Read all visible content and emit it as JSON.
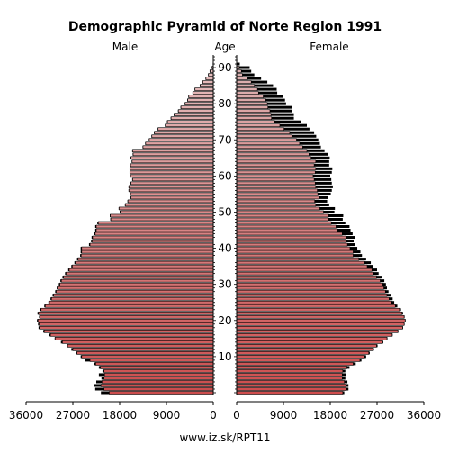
{
  "chart_data": {
    "type": "population-pyramid",
    "title": "Demographic Pyramid of Norte Region 1991",
    "left_header": "Male",
    "center_header": "Age",
    "right_header": "Female",
    "footer": "www.iz.sk/RPT11",
    "age_ticks": [
      "10",
      "20",
      "30",
      "40",
      "50",
      "60",
      "70",
      "80",
      "90"
    ],
    "age_tick_values": [
      10,
      20,
      30,
      40,
      50,
      60,
      70,
      80,
      90
    ],
    "male_ticks": [
      "36000",
      "27000",
      "18000",
      "9000",
      "0"
    ],
    "male_tick_values": [
      36000,
      27000,
      18000,
      9000,
      0
    ],
    "female_ticks": [
      "0",
      "9000",
      "18000",
      "27000",
      "36000"
    ],
    "female_tick_values": [
      0,
      9000,
      18000,
      27000,
      36000
    ],
    "xlim": [
      0,
      36000
    ],
    "ages": [
      0,
      1,
      2,
      3,
      4,
      5,
      6,
      7,
      8,
      9,
      10,
      11,
      12,
      13,
      14,
      15,
      16,
      17,
      18,
      19,
      20,
      21,
      22,
      23,
      24,
      25,
      26,
      27,
      28,
      29,
      30,
      31,
      32,
      33,
      34,
      35,
      36,
      37,
      38,
      39,
      40,
      41,
      42,
      43,
      44,
      45,
      46,
      47,
      48,
      49,
      50,
      51,
      52,
      53,
      54,
      55,
      56,
      57,
      58,
      59,
      60,
      61,
      62,
      63,
      64,
      65,
      66,
      67,
      68,
      69,
      70,
      71,
      72,
      73,
      74,
      75,
      76,
      77,
      78,
      79,
      80,
      81,
      82,
      83,
      84,
      85,
      86,
      87,
      88,
      89,
      90,
      91,
      92,
      93
    ],
    "male_1991": [
      21600,
      22700,
      23000,
      22500,
      21500,
      22000,
      21300,
      22000,
      22900,
      24600,
      25500,
      26300,
      27300,
      28100,
      29300,
      30500,
      31600,
      32700,
      33600,
      33700,
      33900,
      33500,
      33800,
      33300,
      32500,
      31700,
      31300,
      30900,
      30400,
      30100,
      29700,
      29400,
      29000,
      28500,
      27900,
      27300,
      26700,
      26200,
      25600,
      25500,
      25500,
      23900,
      23500,
      23400,
      22900,
      22700,
      22700,
      22300,
      19800,
      19900,
      18000,
      18200,
      17000,
      16500,
      15900,
      16000,
      16300,
      16300,
      15900,
      15600,
      16000,
      16100,
      16100,
      16000,
      15700,
      15900,
      15500,
      15600,
      13600,
      13100,
      12400,
      11900,
      11400,
      10700,
      9300,
      8900,
      8200,
      7600,
      6800,
      6300,
      5500,
      5000,
      4800,
      4000,
      3600,
      2600,
      2100,
      1500,
      1000,
      700,
      300,
      100,
      0,
      0
    ],
    "male_lower": [
      20000,
      21000,
      21600,
      21400,
      21000,
      20900,
      21000,
      21700,
      22600,
      23700,
      25300,
      26200,
      27000,
      28000,
      29000,
      30400,
      31300,
      32500,
      33400,
      33500,
      33700,
      33300,
      33600,
      33100,
      32300,
      31500,
      31100,
      30700,
      30200,
      29900,
      29500,
      29200,
      28800,
      28300,
      27700,
      27100,
      26500,
      26000,
      25400,
      25300,
      25300,
      23700,
      23300,
      23200,
      22700,
      22500,
      22500,
      22100,
      19700,
      19800,
      17900,
      18100,
      16900,
      16400,
      15800,
      15900,
      16200,
      16200,
      15800,
      15500,
      15900,
      16000,
      16000,
      15900,
      15600,
      15800,
      15400,
      15500,
      13500,
      13000,
      12300,
      11800,
      11300,
      10600,
      9200,
      8800,
      8100,
      7500,
      6700,
      6200,
      5400,
      4900,
      4700,
      3900,
      3500,
      2500,
      2000,
      1400,
      900,
      600,
      200,
      0,
      0,
      0
    ],
    "female_1991": [
      20700,
      21500,
      21500,
      21300,
      20900,
      21000,
      20900,
      21700,
      22900,
      24000,
      24900,
      25600,
      26400,
      27100,
      28200,
      29000,
      30000,
      31100,
      32000,
      32300,
      32500,
      32300,
      32000,
      31600,
      30900,
      30300,
      30000,
      29600,
      29200,
      28900,
      28700,
      28400,
      27900,
      27300,
      27000,
      26300,
      25800,
      24900,
      24100,
      23800,
      23200,
      22800,
      22500,
      22700,
      22300,
      21900,
      21700,
      20900,
      20400,
      20500,
      18800,
      18900,
      17800,
      17400,
      17500,
      18100,
      18300,
      18500,
      18300,
      18200,
      18000,
      18300,
      18400,
      17800,
      17800,
      17900,
      17600,
      16900,
      16200,
      16000,
      15700,
      15300,
      14900,
      14000,
      13500,
      12400,
      11000,
      11000,
      10700,
      10700,
      9500,
      9300,
      9000,
      7800,
      7700,
      7000,
      5900,
      4700,
      3400,
      2800,
      2500,
      600,
      100,
      0
    ],
    "female_lower": [
      20400,
      21100,
      21000,
      20700,
      20300,
      20300,
      20400,
      21200,
      22400,
      23700,
      24600,
      25400,
      26200,
      26900,
      28000,
      28900,
      29900,
      31000,
      31900,
      32200,
      32400,
      32200,
      31800,
      31300,
      30500,
      29800,
      29300,
      28900,
      28600,
      28300,
      28100,
      27600,
      26900,
      26300,
      26000,
      25100,
      24600,
      23500,
      22400,
      22400,
      21800,
      21300,
      21000,
      21000,
      20300,
      19400,
      19100,
      18200,
      17600,
      17700,
      16700,
      16000,
      15200,
      15000,
      15800,
      15600,
      15500,
      15200,
      15100,
      14900,
      14700,
      15100,
      15200,
      14900,
      15200,
      14300,
      13900,
      13500,
      12700,
      12100,
      11500,
      10600,
      10200,
      9100,
      8300,
      7300,
      6700,
      6600,
      6400,
      6000,
      5900,
      5600,
      5100,
      4200,
      4000,
      3400,
      2800,
      2100,
      1100,
      900,
      500,
      0,
      0,
      0
    ],
    "colors": {
      "male_top": "#e5c1c1",
      "male_bottom": "#cc4c4c",
      "female_top": "#ddb6b6",
      "female_bottom": "#d04d4d",
      "outline": "#000000",
      "shadow": "#000000"
    }
  }
}
